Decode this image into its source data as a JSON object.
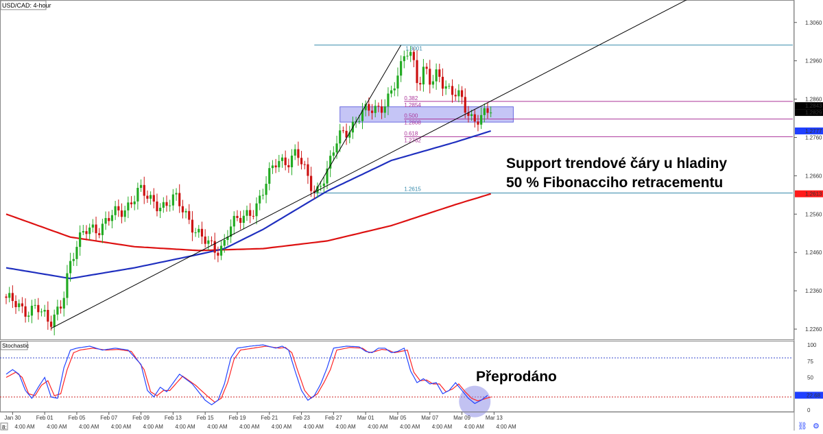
{
  "app": {
    "title": "USD/CAD: 4-hour",
    "indicator_title": "Stochastic"
  },
  "annotations": {
    "main_line1": "Support trendové čáry u hladiny",
    "main_line2": "50 % Fibonacciho retracementu",
    "stoch_label": "Přeprodáno"
  },
  "fib": [
    {
      "ratio": "0.382",
      "price_label": "1.2854",
      "price": 1.2854
    },
    {
      "ratio": "0.500",
      "price_label": "1.2808",
      "price": 1.2808
    },
    {
      "ratio": "0.618",
      "price_label": "1.2762",
      "price": 1.2762
    }
  ],
  "fib_high_label": "1.3001",
  "fib_low_label": "1.2615",
  "price_badges": [
    {
      "label": "1.2843",
      "value": 1.2843,
      "color": "#000000"
    },
    {
      "label": "1.2829",
      "value": 1.2829,
      "color": "#000000"
    },
    {
      "label": "1.2777",
      "value": 1.2777,
      "color": "#1f3fff"
    },
    {
      "label": "1.2613",
      "value": 1.2613,
      "color": "#ff1a1a"
    }
  ],
  "stoch_badge": {
    "label": "22.68",
    "value": 22.68,
    "color": "#1f3fff"
  },
  "bottom_labels": [
    "8:",
    "4:00 AM"
  ],
  "colors": {
    "up": "#22aa22",
    "down": "#cc1111",
    "sma_fast": "#1f2fbf",
    "sma_slow": "#dd1111",
    "fib_line": "#aa3399",
    "level_line": "#3388aa",
    "zone_fill": "#9f9ff0",
    "stoch_k": "#2244ff",
    "stoch_d": "#ff2222",
    "highlight": "#8f8fe8"
  },
  "chart_data": {
    "type": "candlestick",
    "title": "USD/CAD: 4-hour",
    "y_ticks": [
      1.306,
      1.296,
      1.286,
      1.276,
      1.266,
      1.256,
      1.246,
      1.236,
      1.226
    ],
    "y_tick_labels": [
      "1.3060",
      "1.2960",
      "1.2860",
      "1.2760",
      "1.2660",
      "1.2560",
      "1.2460",
      "1.2360",
      "1.2260"
    ],
    "ylim": [
      1.2235,
      1.3115
    ],
    "x_ticks": [
      "Jan 30",
      "Feb 01",
      "Feb 05",
      "Feb 07",
      "Feb 09",
      "Feb 13",
      "Feb 15",
      "Feb 19",
      "Feb 21",
      "Feb 23",
      "Feb 27",
      "Mar 01",
      "Mar 05",
      "Mar 07",
      "Mar 09",
      "Mar 13"
    ],
    "x_tick_bars": [
      2,
      12,
      22,
      32,
      42,
      52,
      62,
      72,
      82,
      92,
      102,
      112,
      122,
      132,
      142,
      152
    ],
    "bars_visible": 152,
    "key_points": [
      [
        0,
        1.2345
      ],
      [
        6,
        1.2305
      ],
      [
        10,
        1.2325
      ],
      [
        14,
        1.2265
      ],
      [
        18,
        1.234
      ],
      [
        20,
        1.242
      ],
      [
        23,
        1.248
      ],
      [
        25,
        1.252
      ],
      [
        27,
        1.253
      ],
      [
        30,
        1.252
      ],
      [
        34,
        1.256
      ],
      [
        38,
        1.258
      ],
      [
        42,
        1.262
      ],
      [
        45,
        1.26
      ],
      [
        50,
        1.258
      ],
      [
        53,
        1.26
      ],
      [
        56,
        1.257
      ],
      [
        58,
        1.254
      ],
      [
        61,
        1.25
      ],
      [
        64,
        1.2475
      ],
      [
        66,
        1.2465
      ],
      [
        68,
        1.248
      ],
      [
        70,
        1.253
      ],
      [
        74,
        1.2545
      ],
      [
        78,
        1.258
      ],
      [
        80,
        1.261
      ],
      [
        82,
        1.265
      ],
      [
        85,
        1.27
      ],
      [
        88,
        1.27
      ],
      [
        91,
        1.272
      ],
      [
        93,
        1.268
      ],
      [
        95,
        1.264
      ],
      [
        97,
        1.262
      ],
      [
        101,
        1.268
      ],
      [
        104,
        1.276
      ],
      [
        108,
        1.279
      ],
      [
        111,
        1.282
      ],
      [
        114,
        1.283
      ],
      [
        117,
        1.284
      ],
      [
        120,
        1.287
      ],
      [
        123,
        1.292
      ],
      [
        125,
        1.299
      ],
      [
        127,
        1.298
      ],
      [
        129,
        1.29
      ],
      [
        131,
        1.294
      ],
      [
        133,
        1.289
      ],
      [
        135,
        1.293
      ],
      [
        137,
        1.29
      ],
      [
        140,
        1.288
      ],
      [
        142,
        1.286
      ],
      [
        144,
        1.282
      ],
      [
        146,
        1.2805
      ],
      [
        148,
        1.282
      ],
      [
        150,
        1.2829
      ]
    ],
    "sma_fast": [
      [
        0,
        1.242
      ],
      [
        20,
        1.2392
      ],
      [
        40,
        1.242
      ],
      [
        60,
        1.2455
      ],
      [
        68,
        1.247
      ],
      [
        80,
        1.252
      ],
      [
        100,
        1.262
      ],
      [
        120,
        1.27
      ],
      [
        140,
        1.2748
      ],
      [
        151,
        1.2777
      ]
    ],
    "sma_slow": [
      [
        0,
        1.256
      ],
      [
        20,
        1.25
      ],
      [
        40,
        1.2475
      ],
      [
        60,
        1.2465
      ],
      [
        80,
        1.247
      ],
      [
        100,
        1.249
      ],
      [
        120,
        1.253
      ],
      [
        140,
        1.2585
      ],
      [
        151,
        1.2613
      ]
    ],
    "trendline": [
      [
        14,
        1.2262
      ],
      [
        151,
        1.2855
      ]
    ],
    "fib_swing": {
      "high": 1.3001,
      "low": 1.2615
    },
    "support_zone": [
      1.28,
      1.284
    ],
    "stochastic": {
      "ylim": [
        0,
        100
      ],
      "y_ticks": [
        100,
        75,
        50,
        25,
        0
      ],
      "y_tick_labels": [
        "100",
        "75",
        "50",
        "25",
        "0"
      ],
      "levels": [
        80,
        20
      ],
      "k": [
        [
          0,
          55
        ],
        [
          2,
          62
        ],
        [
          4,
          55
        ],
        [
          6,
          30
        ],
        [
          8,
          18
        ],
        [
          10,
          35
        ],
        [
          12,
          50
        ],
        [
          14,
          20
        ],
        [
          16,
          18
        ],
        [
          18,
          65
        ],
        [
          20,
          92
        ],
        [
          22,
          95
        ],
        [
          26,
          98
        ],
        [
          30,
          92
        ],
        [
          34,
          95
        ],
        [
          38,
          92
        ],
        [
          42,
          70
        ],
        [
          44,
          30
        ],
        [
          46,
          20
        ],
        [
          48,
          35
        ],
        [
          50,
          28
        ],
        [
          54,
          55
        ],
        [
          58,
          40
        ],
        [
          62,
          15
        ],
        [
          64,
          8
        ],
        [
          66,
          15
        ],
        [
          68,
          40
        ],
        [
          70,
          80
        ],
        [
          72,
          95
        ],
        [
          76,
          98
        ],
        [
          80,
          100
        ],
        [
          84,
          95
        ],
        [
          86,
          98
        ],
        [
          88,
          92
        ],
        [
          90,
          60
        ],
        [
          92,
          30
        ],
        [
          94,
          15
        ],
        [
          96,
          22
        ],
        [
          98,
          40
        ],
        [
          100,
          65
        ],
        [
          102,
          95
        ],
        [
          106,
          98
        ],
        [
          110,
          97
        ],
        [
          112,
          90
        ],
        [
          114,
          88
        ],
        [
          116,
          95
        ],
        [
          118,
          95
        ],
        [
          120,
          88
        ],
        [
          122,
          90
        ],
        [
          124,
          95
        ],
        [
          126,
          60
        ],
        [
          128,
          42
        ],
        [
          130,
          48
        ],
        [
          132,
          40
        ],
        [
          134,
          42
        ],
        [
          136,
          25
        ],
        [
          138,
          30
        ],
        [
          140,
          42
        ],
        [
          142,
          30
        ],
        [
          144,
          18
        ],
        [
          146,
          10
        ],
        [
          148,
          15
        ],
        [
          150,
          22.68
        ]
      ],
      "d": [
        [
          0,
          50
        ],
        [
          3,
          58
        ],
        [
          5,
          50
        ],
        [
          7,
          25
        ],
        [
          9,
          22
        ],
        [
          11,
          38
        ],
        [
          13,
          45
        ],
        [
          15,
          22
        ],
        [
          17,
          25
        ],
        [
          19,
          62
        ],
        [
          21,
          88
        ],
        [
          23,
          92
        ],
        [
          27,
          95
        ],
        [
          31,
          92
        ],
        [
          35,
          93
        ],
        [
          39,
          90
        ],
        [
          43,
          62
        ],
        [
          45,
          28
        ],
        [
          47,
          22
        ],
        [
          49,
          30
        ],
        [
          51,
          30
        ],
        [
          55,
          52
        ],
        [
          59,
          38
        ],
        [
          63,
          20
        ],
        [
          65,
          12
        ],
        [
          67,
          18
        ],
        [
          69,
          42
        ],
        [
          71,
          78
        ],
        [
          73,
          92
        ],
        [
          77,
          95
        ],
        [
          81,
          98
        ],
        [
          85,
          95
        ],
        [
          87,
          96
        ],
        [
          89,
          88
        ],
        [
          91,
          58
        ],
        [
          93,
          30
        ],
        [
          95,
          18
        ],
        [
          97,
          25
        ],
        [
          99,
          42
        ],
        [
          101,
          62
        ],
        [
          103,
          92
        ],
        [
          107,
          96
        ],
        [
          111,
          95
        ],
        [
          113,
          88
        ],
        [
          115,
          90
        ],
        [
          117,
          93
        ],
        [
          119,
          92
        ],
        [
          121,
          88
        ],
        [
          123,
          90
        ],
        [
          125,
          92
        ],
        [
          127,
          58
        ],
        [
          129,
          45
        ],
        [
          131,
          46
        ],
        [
          133,
          40
        ],
        [
          135,
          40
        ],
        [
          137,
          28
        ],
        [
          139,
          32
        ],
        [
          141,
          40
        ],
        [
          143,
          28
        ],
        [
          145,
          18
        ],
        [
          147,
          14
        ],
        [
          149,
          17
        ],
        [
          151,
          20
        ]
      ]
    }
  }
}
